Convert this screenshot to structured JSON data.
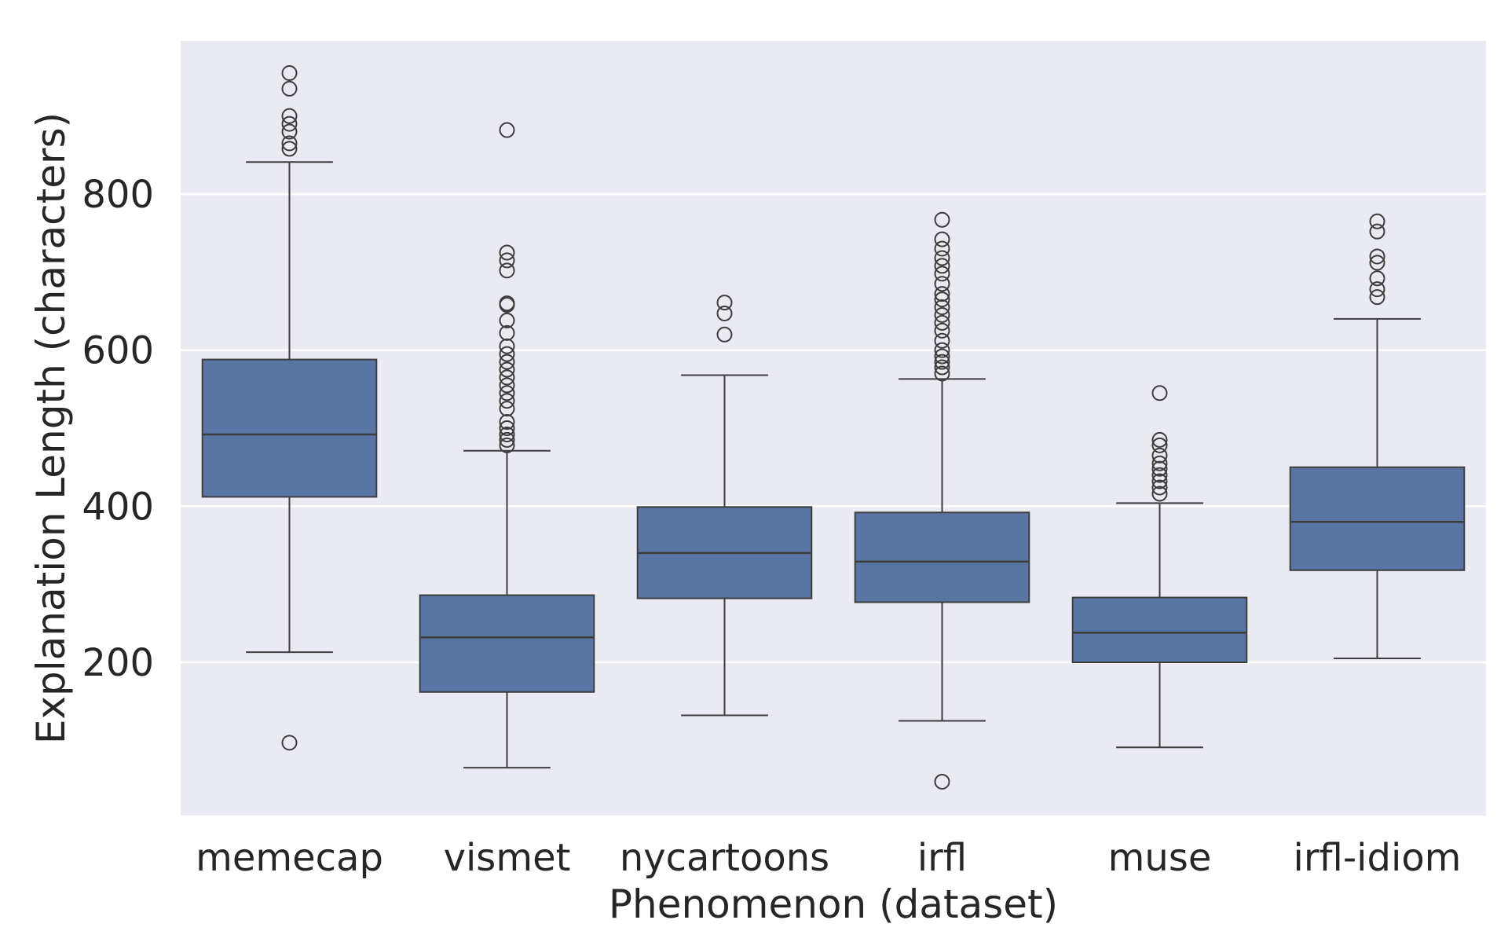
{
  "chart_data": {
    "type": "box",
    "xlabel": "Phenomenon (dataset)",
    "ylabel": "Explanation Length (characters)",
    "ylim": [
      0,
      1000
    ],
    "yticks": [
      200,
      400,
      600,
      800
    ],
    "grid": true,
    "colors": {
      "box": "#5875a4",
      "background": "#eaeaf2",
      "grid": "#ffffff",
      "line": "#3d3d3d"
    },
    "boxes": [
      {
        "category": "memecap",
        "whisker_low": 213,
        "q1": 412,
        "median": 492,
        "q3": 588,
        "whisker_high": 841,
        "outliers": [
          955,
          935,
          900,
          890,
          880,
          865,
          858,
          97
        ]
      },
      {
        "category": "vismet",
        "whisker_low": 65,
        "q1": 162,
        "median": 232,
        "q3": 286,
        "whisker_high": 471,
        "outliers": [
          882,
          725,
          715,
          702,
          660,
          658,
          638,
          622,
          605,
          595,
          585,
          575,
          565,
          555,
          545,
          535,
          525,
          508,
          500,
          492,
          485,
          478
        ]
      },
      {
        "category": "nycartoons",
        "whisker_low": 132,
        "q1": 282,
        "median": 340,
        "q3": 399,
        "whisker_high": 568,
        "outliers": [
          661,
          647,
          620
        ]
      },
      {
        "category": "irfl",
        "whisker_low": 125,
        "q1": 277,
        "median": 329,
        "q3": 392,
        "whisker_high": 563,
        "outliers": [
          767,
          742,
          730,
          718,
          708,
          698,
          685,
          672,
          665,
          655,
          645,
          635,
          625,
          612,
          600,
          592,
          585,
          578,
          570,
          47
        ]
      },
      {
        "category": "muse",
        "whisker_low": 91,
        "q1": 200,
        "median": 238,
        "q3": 283,
        "whisker_high": 404,
        "outliers": [
          545,
          485,
          478,
          465,
          455,
          448,
          440,
          432,
          424,
          416
        ]
      },
      {
        "category": "irfl-idiom",
        "whisker_low": 205,
        "q1": 318,
        "median": 380,
        "q3": 450,
        "whisker_high": 640,
        "outliers": [
          765,
          752,
          720,
          712,
          692,
          678,
          668
        ]
      }
    ]
  }
}
